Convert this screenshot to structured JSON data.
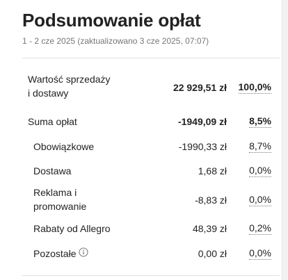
{
  "header": {
    "title": "Podsumowanie opłat",
    "subtitle": "1 - 2 cze 2025 (zaktualizowano 3 cze 2025, 07:07)"
  },
  "rows": [
    {
      "label_line1": "Wartość sprzedaży",
      "label_line2": "i dostawy",
      "amount": "22 929,51 zł",
      "percent": "100,0%"
    },
    {
      "label": "Suma opłat",
      "amount": "-1949,09 zł",
      "percent": "8,5%"
    },
    {
      "label": "Obowiązkowe",
      "amount": "-1990,33 zł",
      "percent": "8,7%"
    },
    {
      "label": "Dostawa",
      "amount": "1,68 zł",
      "percent": "0,0%"
    },
    {
      "label_line1": "Reklama i",
      "label_line2": "promowanie",
      "amount": "-8,83 zł",
      "percent": "0,0%"
    },
    {
      "label": "Rabaty od Allegro",
      "amount": "48,39 zł",
      "percent": "0,2%"
    },
    {
      "label": "Pozostałe",
      "amount": "0,00 zł",
      "percent": "0,0%",
      "icon": "info-icon"
    }
  ],
  "colors": {
    "text": "#222222",
    "muted": "#767676",
    "divider": "#e0e0e0",
    "background": "#ffffff"
  }
}
